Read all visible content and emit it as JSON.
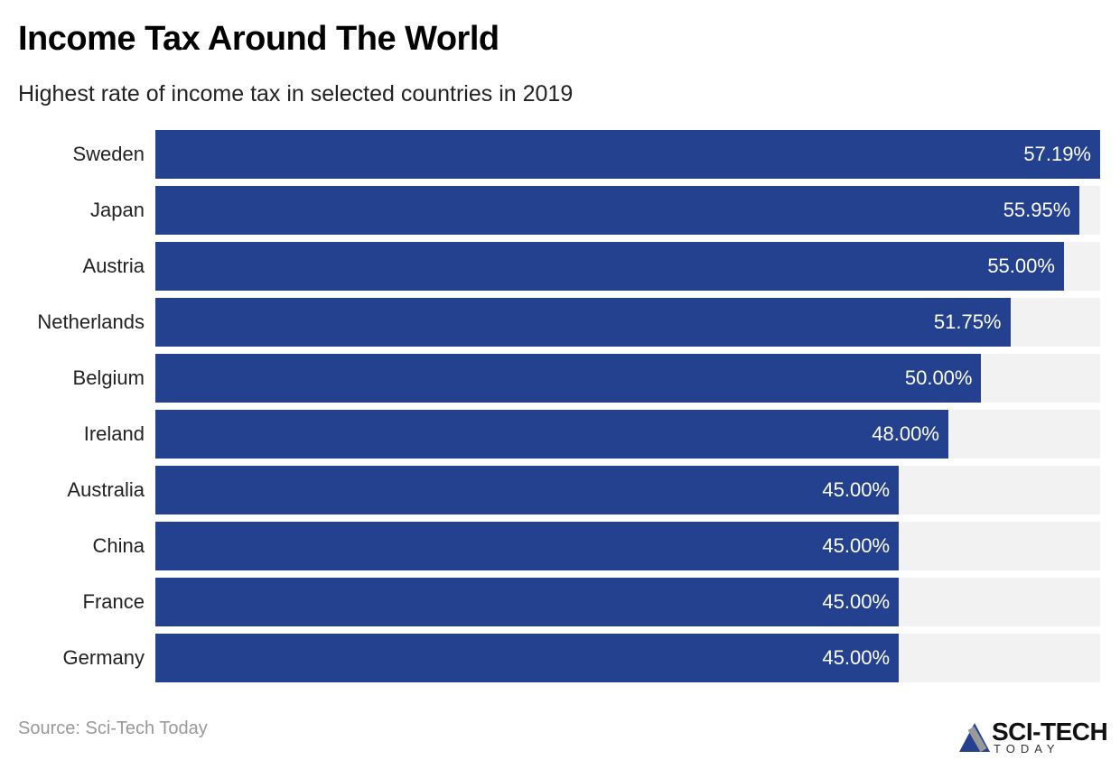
{
  "header": {
    "title": "Income Tax Around The World",
    "subtitle": "Highest rate of income tax in selected countries in 2019"
  },
  "footer": {
    "source": "Source: Sci-Tech Today",
    "logo_text": "SCI-TECH",
    "logo_subtext": "TODAY"
  },
  "chart_data": {
    "type": "bar",
    "orientation": "horizontal",
    "categories": [
      "Sweden",
      "Japan",
      "Austria",
      "Netherlands",
      "Belgium",
      "Ireland",
      "Australia",
      "China",
      "France",
      "Germany"
    ],
    "values": [
      57.19,
      55.95,
      55.0,
      51.75,
      50.0,
      48.0,
      45.0,
      45.0,
      45.0,
      45.0
    ],
    "data_labels": [
      "57.19%",
      "55.95%",
      "55.00%",
      "51.75%",
      "50.00%",
      "48.00%",
      "45.00%",
      "45.00%",
      "45.00%",
      "45.00%"
    ],
    "title": "Income Tax Around The World",
    "subtitle": "Highest rate of income tax in selected countries in 2019",
    "xlim": [
      0,
      57.19
    ],
    "grid": false,
    "colors": {
      "bar": "#24418f",
      "track": "#f2f2f2"
    }
  }
}
